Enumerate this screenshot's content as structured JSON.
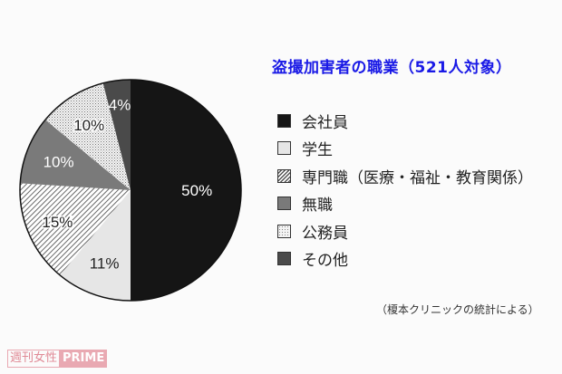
{
  "chart_data": {
    "type": "pie",
    "title": "盗撮加害者の職業（521人対象）",
    "categories": [
      "会社員",
      "学生",
      "専門職（医療・福祉・教育関係）",
      "無職",
      "公務員",
      "その他"
    ],
    "values": [
      50,
      11,
      15,
      10,
      10,
      4
    ],
    "labels": [
      "50%",
      "11%",
      "15%",
      "10%",
      "10%",
      "4%"
    ],
    "colors": [
      "#151515",
      "#e6e6e6",
      "hatch",
      "#7a7a7a",
      "dots",
      "#4a4a4a"
    ],
    "legend_position": "right",
    "note": "（榎本クリニックの統計による）"
  },
  "title": "盗撮加害者の職業（521人対象）",
  "legend": [
    {
      "label": "会社員"
    },
    {
      "label": "学生"
    },
    {
      "label": "専門職（医療・福祉・教育関係）"
    },
    {
      "label": "無職"
    },
    {
      "label": "公務員"
    },
    {
      "label": "その他"
    }
  ],
  "source": "（榎本クリニックの統計による）",
  "watermark": {
    "part1": "週刊女性",
    "part2": "PRIME"
  }
}
